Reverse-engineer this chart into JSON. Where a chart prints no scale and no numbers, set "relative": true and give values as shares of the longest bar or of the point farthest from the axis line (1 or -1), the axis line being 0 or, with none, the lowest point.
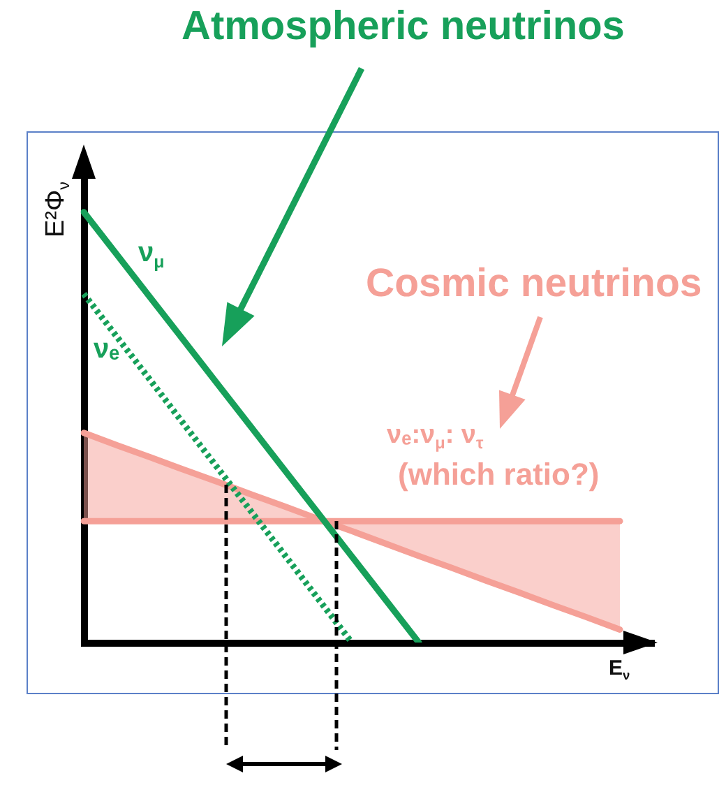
{
  "chart_data": {
    "type": "line",
    "relative": true,
    "categories": [
      null,
      null,
      null,
      null,
      null,
      null,
      null,
      null,
      null,
      null,
      null,
      null,
      null,
      null,
      null,
      null,
      null,
      null
    ],
    "series": [
      {
        "name": "ν$_{μ}$",
        "color": "#17a05a",
        "values": [
          1,
          0.9,
          0.8,
          0.7,
          0.6,
          0.5,
          0.4,
          0.3,
          0.2,
          0.1,
          0,
          null,
          null,
          null,
          null,
          null,
          null,
          null
        ]
      },
      {
        "name": "νₑ",
        "color": "#17a05a",
        "line_style": "dotted",
        "values": [
          0.81,
          0.709,
          0.608,
          0.506,
          0.405,
          0.304,
          0.203,
          0.101,
          0,
          null,
          null,
          null,
          null,
          null,
          null,
          null,
          null,
          null
        ]
      },
      {
        "color": "#f5a097",
        "values": [
          0.487,
          0.458,
          0.43,
          0.401,
          0.373,
          0.344,
          0.316,
          0.287,
          0.259,
          0.23,
          0.201,
          0.173,
          0.144,
          0.116,
          0.087,
          0.059,
          0.03,
          null
        ]
      },
      {
        "color": "#f5a097",
        "values": [
          0.282,
          0.282,
          0.282,
          0.282,
          0.282,
          0.282,
          0.282,
          0.282,
          0.282,
          0.282,
          0.282,
          0.282,
          0.282,
          0.282,
          0.282,
          0.282,
          0.282,
          null
        ],
        "lower": [
          0.282,
          0.282,
          0.282,
          0.282,
          0.282,
          0.282,
          0.282,
          0.282,
          0.259,
          0.23,
          0.201,
          0.173,
          0.144,
          0.116,
          0.087,
          0.059,
          0.03,
          null
        ],
        "upper": [
          0.487,
          0.458,
          0.43,
          0.401,
          0.373,
          0.344,
          0.316,
          0.287,
          0.282,
          0.282,
          0.282,
          0.282,
          0.282,
          0.282,
          0.282,
          0.282,
          0.282,
          null
        ]
      }
    ],
    "xlabel": "E$_{ν}$",
    "ylabel": "E²Φ$_{ν}$",
    "annotations": [
      "Atmospheric neutrinos",
      "Cosmic neutrinos",
      "νₑ:ν$_{μ}$: ν$_{τ}$",
      "(which ratio?)"
    ]
  }
}
